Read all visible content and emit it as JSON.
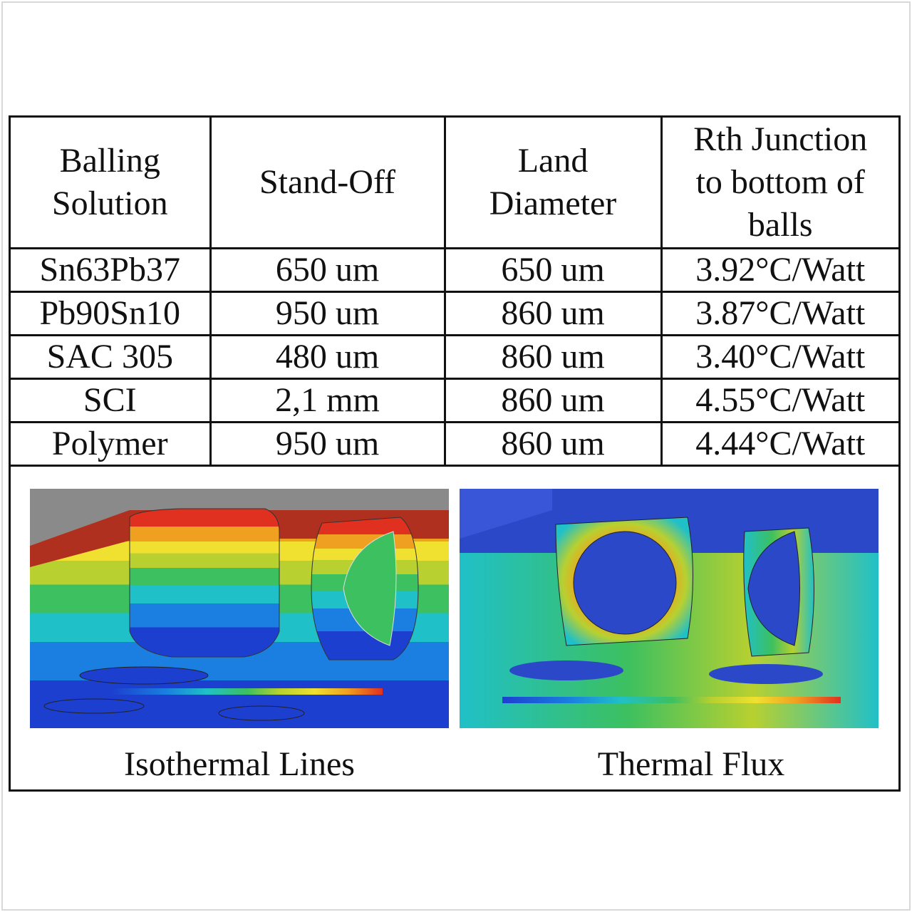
{
  "table": {
    "headers": [
      [
        "Balling",
        "Solution"
      ],
      [
        "Stand-Off"
      ],
      [
        "Land",
        "Diameter"
      ],
      [
        "Rth Junction",
        "to bottom of",
        "balls"
      ]
    ],
    "rows": [
      [
        "Sn63Pb37",
        "650 um",
        "650 um",
        "3.92°C/Watt"
      ],
      [
        "Pb90Sn10",
        "950 um",
        "860 um",
        "3.87°C/Watt"
      ],
      [
        "SAC 305",
        "480 um",
        "860 um",
        "3.40°C/Watt"
      ],
      [
        "SCI",
        "2,1 mm",
        "860 um",
        "4.55°C/Watt"
      ],
      [
        "Polymer",
        "950 um",
        "860 um",
        "4.44°C/Watt"
      ]
    ]
  },
  "figures": {
    "left_caption": "Isothermal Lines",
    "right_caption": "Thermal Flux"
  },
  "colors": {
    "scale": [
      "#1c3fd0",
      "#1a7fe0",
      "#20c0c8",
      "#3cc060",
      "#b8d030",
      "#f0e030",
      "#f0a020",
      "#e03020"
    ]
  }
}
